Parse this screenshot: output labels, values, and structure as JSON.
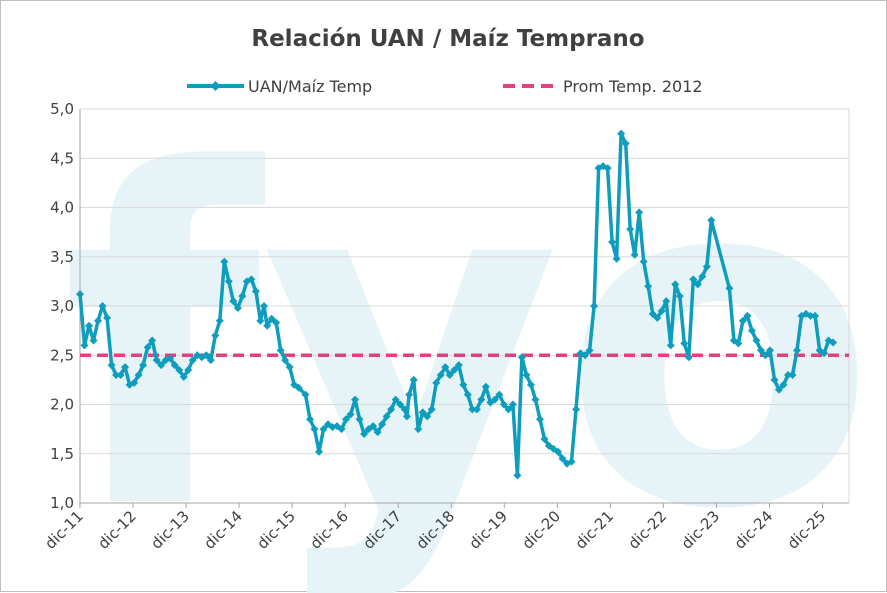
{
  "chart_data": {
    "type": "line",
    "title": "Relación UAN / Maíz Temprano",
    "legend": {
      "placement": "top",
      "entries": [
        "UAN/Maíz Temp",
        "Prom Temp. 2012"
      ]
    },
    "colors": {
      "uan": "#0e9dbd",
      "avg": "#e2407f",
      "watermark": "#e6f4f7",
      "grid": "#d9d9d9",
      "axis": "#a6a6a6"
    },
    "watermark": "fyo",
    "ylim": [
      1.0,
      5.0
    ],
    "y_ticks": [
      "1,0",
      "1,5",
      "2,0",
      "2,5",
      "3,0",
      "3,5",
      "4,0",
      "4,5",
      "5,0"
    ],
    "x_ticks": [
      "dic-11",
      "dic-12",
      "dic-13",
      "dic-14",
      "dic-15",
      "dic-16",
      "dic-17",
      "dic-18",
      "dic-19",
      "dic-20",
      "dic-21",
      "dic-22",
      "dic-23",
      "dic-24",
      "dic-25"
    ],
    "grid": "horizontal",
    "series": [
      {
        "name": "UAN/Maíz Temp",
        "style": "line-with-diamond-markers",
        "points": [
          [
            0.0,
            3.12
          ],
          [
            0.1,
            2.6
          ],
          [
            0.2,
            2.8
          ],
          [
            0.3,
            2.65
          ],
          [
            0.4,
            2.85
          ],
          [
            0.5,
            3.0
          ],
          [
            0.6,
            2.88
          ],
          [
            0.7,
            2.4
          ],
          [
            0.8,
            2.3
          ],
          [
            0.9,
            2.3
          ],
          [
            1.0,
            2.38
          ],
          [
            1.1,
            2.2
          ],
          [
            1.2,
            2.22
          ],
          [
            1.3,
            2.3
          ],
          [
            1.4,
            2.4
          ],
          [
            1.5,
            2.58
          ],
          [
            1.6,
            2.65
          ],
          [
            1.7,
            2.45
          ],
          [
            1.8,
            2.4
          ],
          [
            1.9,
            2.45
          ],
          [
            2.0,
            2.47
          ],
          [
            2.1,
            2.4
          ],
          [
            2.2,
            2.35
          ],
          [
            2.3,
            2.28
          ],
          [
            2.4,
            2.35
          ],
          [
            2.5,
            2.45
          ],
          [
            2.6,
            2.5
          ],
          [
            2.7,
            2.48
          ],
          [
            2.8,
            2.5
          ],
          [
            2.9,
            2.45
          ],
          [
            3.0,
            2.7
          ],
          [
            3.1,
            2.85
          ],
          [
            3.2,
            3.45
          ],
          [
            3.3,
            3.25
          ],
          [
            3.4,
            3.05
          ],
          [
            3.5,
            2.98
          ],
          [
            3.6,
            3.1
          ],
          [
            3.7,
            3.25
          ],
          [
            3.8,
            3.27
          ],
          [
            3.9,
            3.15
          ],
          [
            4.0,
            2.85
          ],
          [
            4.08,
            3.0
          ],
          [
            4.15,
            2.8
          ],
          [
            4.25,
            2.87
          ],
          [
            4.35,
            2.83
          ],
          [
            4.45,
            2.55
          ],
          [
            4.55,
            2.45
          ],
          [
            4.65,
            2.38
          ],
          [
            4.75,
            2.2
          ],
          [
            4.85,
            2.17
          ],
          [
            5.0,
            2.1
          ],
          [
            5.1,
            1.85
          ],
          [
            5.2,
            1.75
          ],
          [
            5.3,
            1.52
          ],
          [
            5.4,
            1.75
          ],
          [
            5.5,
            1.8
          ],
          [
            5.6,
            1.77
          ],
          [
            5.7,
            1.78
          ],
          [
            5.8,
            1.75
          ],
          [
            5.9,
            1.85
          ],
          [
            6.0,
            1.9
          ],
          [
            6.1,
            2.05
          ],
          [
            6.2,
            1.85
          ],
          [
            6.3,
            1.7
          ],
          [
            6.4,
            1.75
          ],
          [
            6.5,
            1.78
          ],
          [
            6.6,
            1.72
          ],
          [
            6.7,
            1.8
          ],
          [
            6.8,
            1.88
          ],
          [
            6.9,
            1.95
          ],
          [
            7.0,
            2.05
          ],
          [
            7.1,
            2.0
          ],
          [
            7.2,
            1.95
          ],
          [
            7.25,
            1.88
          ],
          [
            7.3,
            2.1
          ],
          [
            7.4,
            2.25
          ],
          [
            7.5,
            1.75
          ],
          [
            7.6,
            1.92
          ],
          [
            7.7,
            1.88
          ],
          [
            7.8,
            1.95
          ],
          [
            7.9,
            2.22
          ],
          [
            8.0,
            2.3
          ],
          [
            8.1,
            2.38
          ],
          [
            8.2,
            2.3
          ],
          [
            8.3,
            2.35
          ],
          [
            8.4,
            2.4
          ],
          [
            8.5,
            2.2
          ],
          [
            8.6,
            2.1
          ],
          [
            8.7,
            1.95
          ],
          [
            8.8,
            1.95
          ],
          [
            8.9,
            2.05
          ],
          [
            9.0,
            2.18
          ],
          [
            9.1,
            2.02
          ],
          [
            9.2,
            2.05
          ],
          [
            9.3,
            2.1
          ],
          [
            9.4,
            2.0
          ],
          [
            9.5,
            1.95
          ],
          [
            9.6,
            2.0
          ],
          [
            9.7,
            1.28
          ],
          [
            9.8,
            2.48
          ],
          [
            9.9,
            2.3
          ],
          [
            10.0,
            2.2
          ],
          [
            10.1,
            2.05
          ],
          [
            10.2,
            1.85
          ],
          [
            10.3,
            1.65
          ],
          [
            10.4,
            1.58
          ],
          [
            10.5,
            1.55
          ],
          [
            10.6,
            1.52
          ],
          [
            10.7,
            1.45
          ],
          [
            10.8,
            1.4
          ],
          [
            10.9,
            1.42
          ],
          [
            11.0,
            1.95
          ],
          [
            11.1,
            2.52
          ],
          [
            11.2,
            2.5
          ],
          [
            11.3,
            2.55
          ],
          [
            11.4,
            3.0
          ],
          [
            11.5,
            4.4
          ],
          [
            11.6,
            4.42
          ],
          [
            11.7,
            4.4
          ],
          [
            11.8,
            3.65
          ],
          [
            11.9,
            3.48
          ],
          [
            12.0,
            4.75
          ],
          [
            12.1,
            4.65
          ],
          [
            12.2,
            3.78
          ],
          [
            12.3,
            3.52
          ],
          [
            12.4,
            3.95
          ],
          [
            12.5,
            3.45
          ],
          [
            12.6,
            3.2
          ],
          [
            12.7,
            2.92
          ],
          [
            12.8,
            2.88
          ],
          [
            12.9,
            2.95
          ],
          [
            13.0,
            3.05
          ],
          [
            13.1,
            2.6
          ],
          [
            13.2,
            3.22
          ],
          [
            13.3,
            3.1
          ],
          [
            13.4,
            2.62
          ],
          [
            13.5,
            2.48
          ],
          [
            13.6,
            3.27
          ],
          [
            13.7,
            3.22
          ],
          [
            13.8,
            3.3
          ],
          [
            13.9,
            3.4
          ],
          [
            14.0,
            3.87
          ],
          [
            14.4,
            3.18
          ],
          [
            14.5,
            2.65
          ],
          [
            14.6,
            2.62
          ],
          [
            14.7,
            2.85
          ],
          [
            14.8,
            2.9
          ],
          [
            14.9,
            2.75
          ],
          [
            15.0,
            2.65
          ],
          [
            15.1,
            2.55
          ],
          [
            15.2,
            2.5
          ],
          [
            15.3,
            2.55
          ],
          [
            15.4,
            2.25
          ],
          [
            15.5,
            2.15
          ],
          [
            15.6,
            2.2
          ],
          [
            15.7,
            2.3
          ],
          [
            15.8,
            2.3
          ],
          [
            15.9,
            2.55
          ],
          [
            16.0,
            2.9
          ],
          [
            16.1,
            2.92
          ],
          [
            16.2,
            2.9
          ],
          [
            16.3,
            2.9
          ],
          [
            16.4,
            2.55
          ],
          [
            16.5,
            2.52
          ],
          [
            16.6,
            2.65
          ],
          [
            16.7,
            2.63
          ]
        ]
      },
      {
        "name": "Prom Temp. 2012",
        "style": "dashed",
        "value": 2.5
      }
    ]
  }
}
